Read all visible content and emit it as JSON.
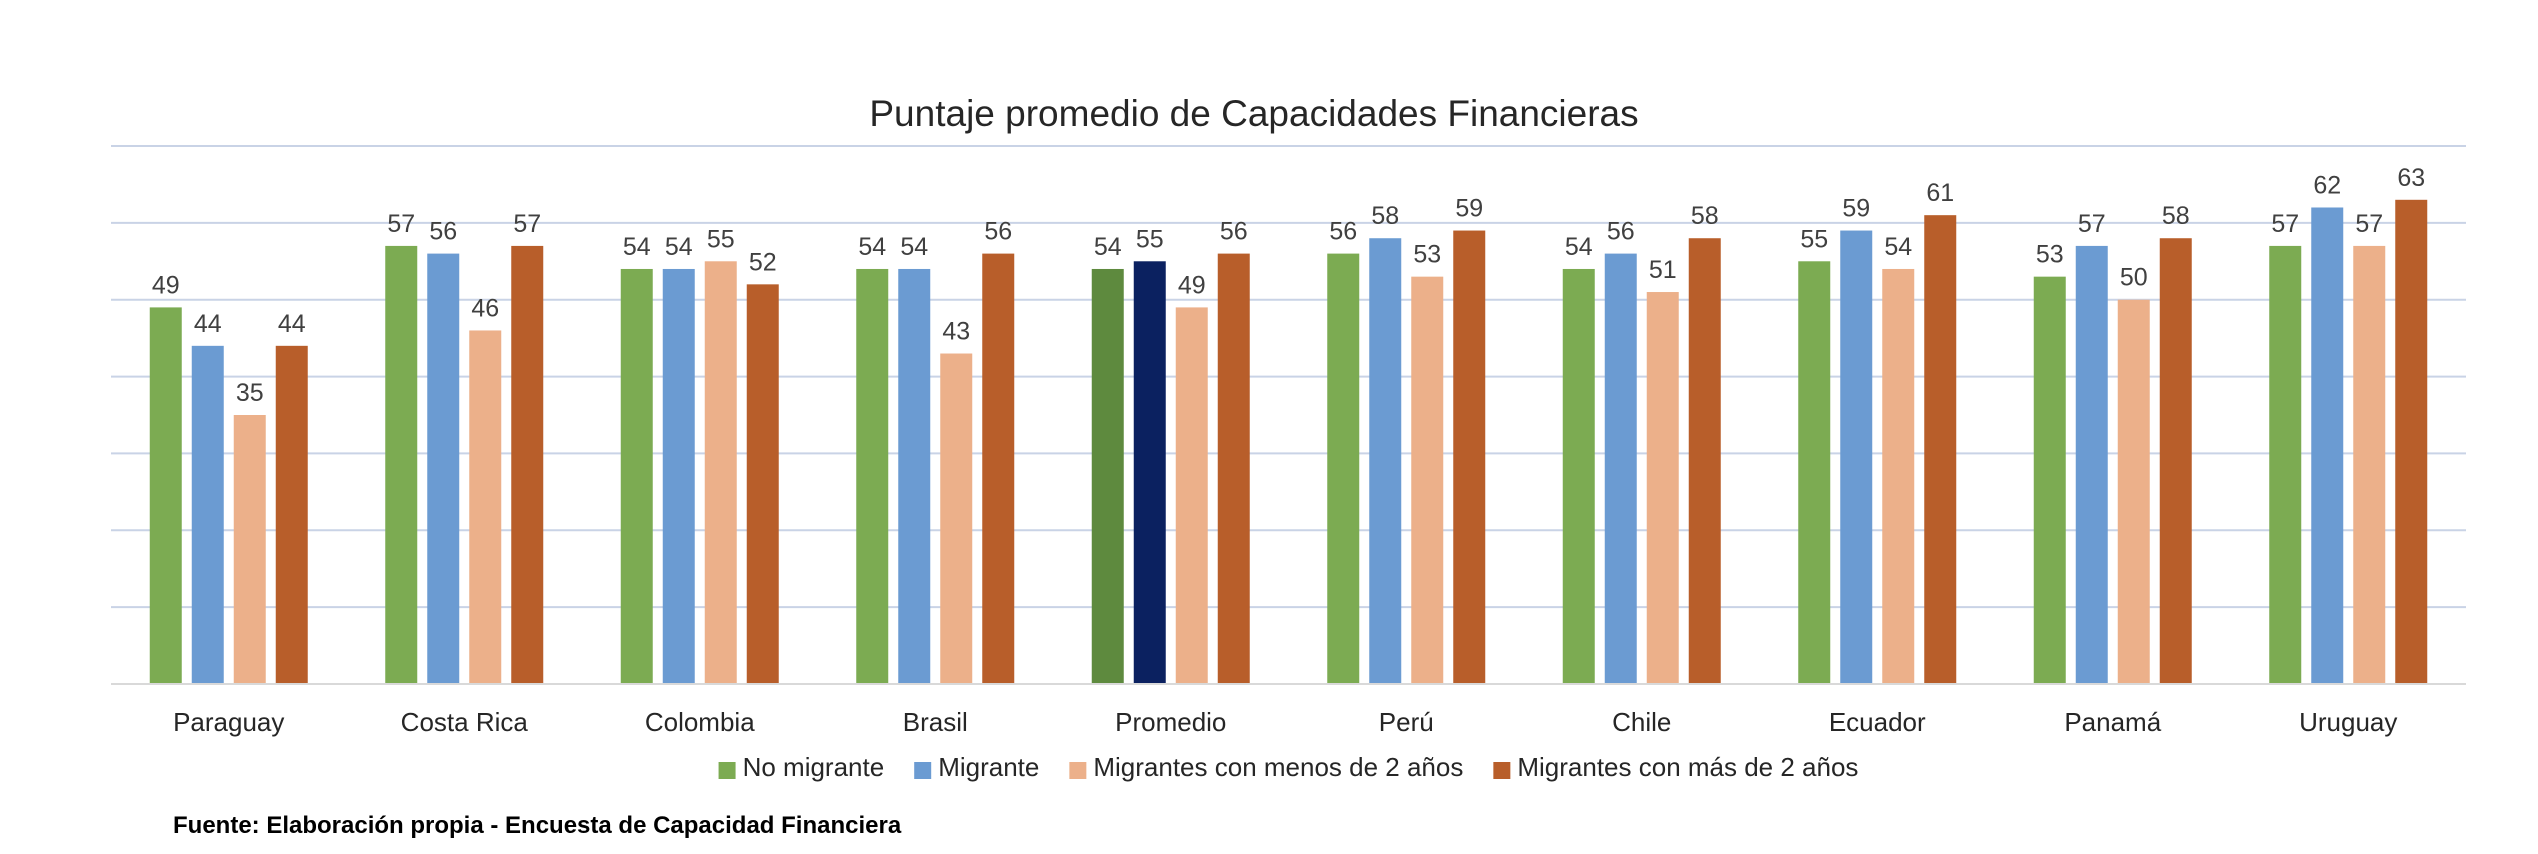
{
  "chart_data": {
    "type": "bar",
    "title": "Puntaje promedio de Capacidades Financieras",
    "xlabel": "",
    "ylabel": "",
    "ylim": [
      0,
      70
    ],
    "grid": true,
    "legend_position": "bottom",
    "categories": [
      "Paraguay",
      "Costa Rica",
      "Colombia",
      "Brasil",
      "Promedio",
      "Perú",
      "Chile",
      "Ecuador",
      "Panamá",
      "Uruguay"
    ],
    "series": [
      {
        "name": "No migrante",
        "color": "#7cab52",
        "highlight_color": "#5e8a3e",
        "values": [
          49,
          57,
          54,
          54,
          54,
          56,
          54,
          55,
          53,
          57
        ]
      },
      {
        "name": "Migrante",
        "color": "#6b9bd2",
        "highlight_color": "#0b2160",
        "values": [
          44,
          56,
          54,
          54,
          55,
          58,
          56,
          59,
          57,
          62
        ]
      },
      {
        "name": "Migrantes con menos de 2 años",
        "color": "#ecb08a",
        "highlight_color": "#ecb08a",
        "values": [
          35,
          46,
          55,
          43,
          49,
          53,
          51,
          54,
          50,
          57
        ]
      },
      {
        "name": "Migrantes con más de 2 años",
        "color": "#b85e2a",
        "highlight_color": "#b85e2a",
        "values": [
          44,
          57,
          52,
          56,
          56,
          59,
          58,
          61,
          58,
          63
        ]
      }
    ],
    "highlight_category": "Promedio",
    "source": "Fuente: Elaboración propia - Encuesta de Capacidad Financiera"
  }
}
